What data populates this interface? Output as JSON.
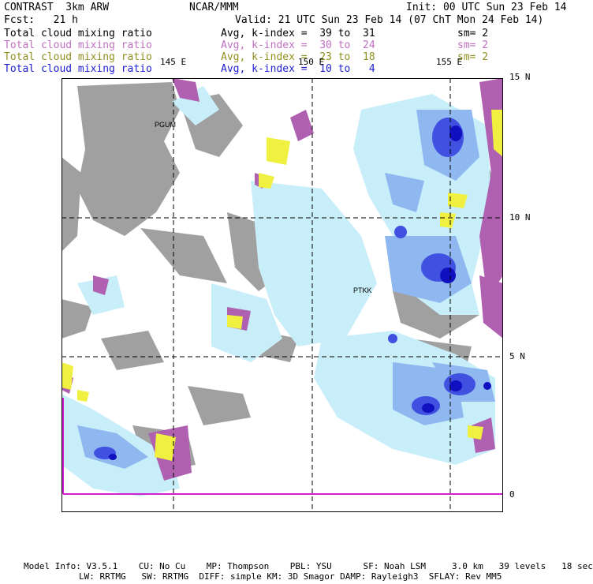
{
  "header": {
    "left1": "CONTRAST  3km ARW",
    "center1": "NCAR/MMM",
    "right1": "Init: 00 UTC Sun 23 Feb 14",
    "left2": "Fcst:   21 h",
    "right2": "Valid: 21 UTC Sun 23 Feb 14 (07 ChT Mon 24 Feb 14)"
  },
  "fields": [
    {
      "name": "Total cloud mixing ratio",
      "avg": "Avg, k-index =  39 to  31",
      "sm": "sm= 2",
      "color": "#000000"
    },
    {
      "name": "Total cloud mixing ratio",
      "avg": "Avg, k-index =  30 to  24",
      "sm": "sm= 2",
      "color": "#c070c0"
    },
    {
      "name": "Total cloud mixing ratio",
      "avg": "Avg, k-index =  23 to  18",
      "sm": "sm= 2",
      "color": "#909020"
    },
    {
      "name": "Total cloud mixing ratio",
      "avg": "Avg, k-index =  10 to   4",
      "sm": "",
      "color": "#2020d0"
    }
  ],
  "map": {
    "lon_labels": [
      "145 E",
      "150 E",
      "155 E"
    ],
    "lat_labels": [
      "15 N",
      "10 N",
      "5 N",
      "0"
    ],
    "stations": [
      "PGUM",
      "PTKK"
    ],
    "colors": {
      "gray": "#a0a0a0",
      "purple": "#b060b0",
      "yellow": "#f0f040",
      "lightblue": "#c8eefa",
      "midblue": "#90b8f0",
      "blue": "#4050e0",
      "darkblue": "#1010c0"
    }
  },
  "footer": {
    "line1": "Model Info: V3.5.1    CU: No Cu    MP: Thompson    PBL: YSU      SF: Noah LSM     3.0 km   39 levels   18 sec",
    "line2": "LW: RRTMG   SW: RRTMG  DIFF: simple KM: 3D Smagor DAMP: Rayleigh3  SFLAY: Rev MM5"
  }
}
